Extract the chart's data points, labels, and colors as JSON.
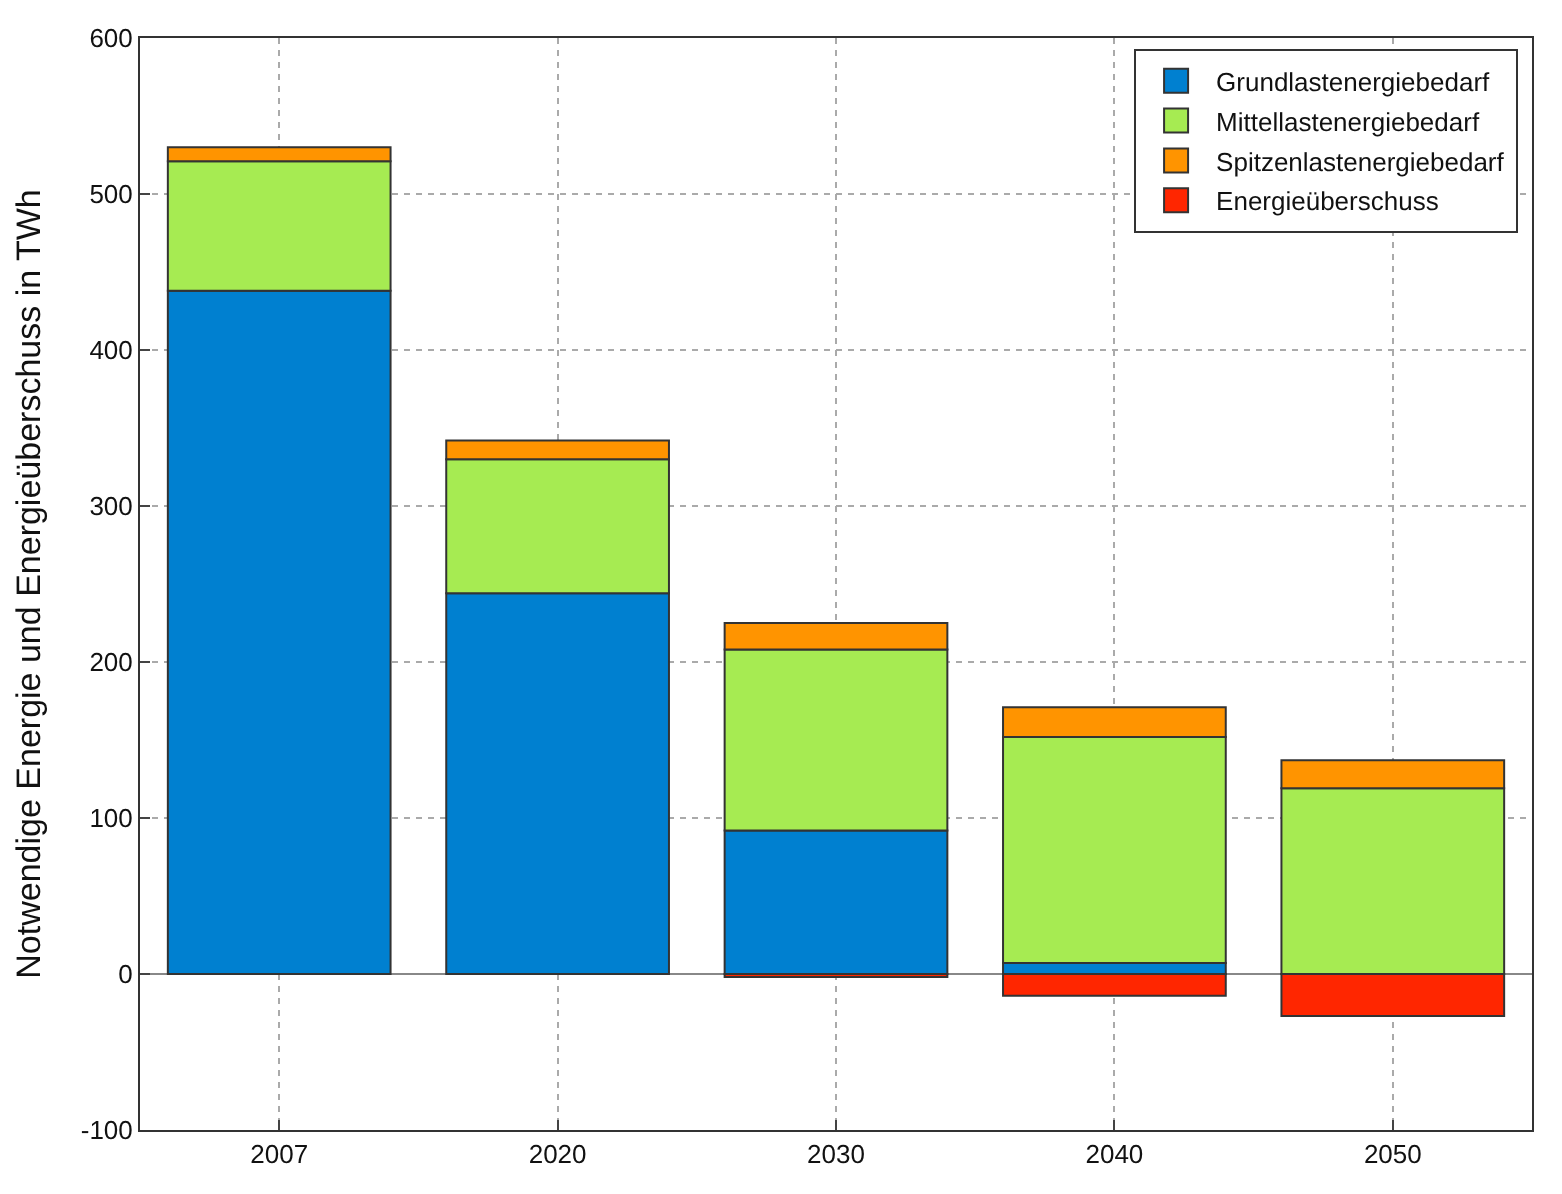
{
  "chart_data": {
    "type": "bar",
    "stacked": true,
    "ylabel": "Notwendige Energie und Energieüberschuss in TWh",
    "categories": [
      "2007",
      "2020",
      "2030",
      "2040",
      "2050"
    ],
    "series": [
      {
        "name": "Grundlastenergiebedarf",
        "color": "#0080d0",
        "values": [
          438,
          244,
          92,
          7,
          null
        ]
      },
      {
        "name": "Mittellastenergiebedarf",
        "color": "#a6eb52",
        "values": [
          83,
          86,
          116,
          145,
          119
        ]
      },
      {
        "name": "Spitzenlastenergiebedarf",
        "color": "#ff9400",
        "values": [
          9,
          12,
          17,
          19,
          18
        ]
      },
      {
        "name": "Energieüberschuss",
        "color": "#ff2600",
        "values": [
          null,
          null,
          -2,
          -14,
          -27
        ]
      }
    ],
    "ylim": [
      -100,
      600
    ],
    "yticks": [
      -100,
      0,
      100,
      200,
      300,
      400,
      500,
      600
    ],
    "grid": true,
    "legend": "top right"
  }
}
